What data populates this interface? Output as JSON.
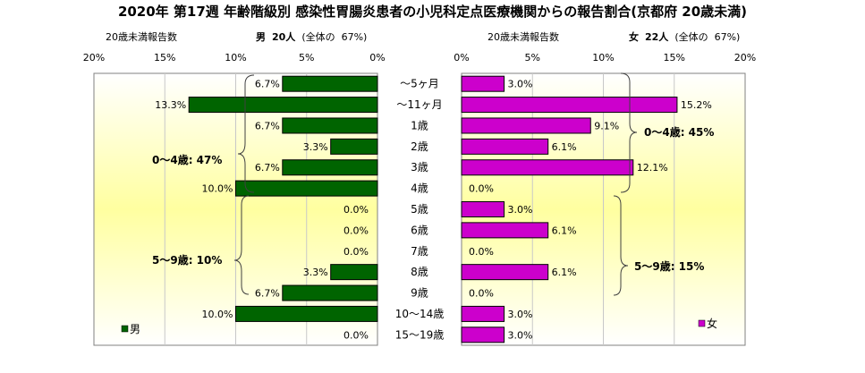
{
  "title": "2020年 第17週 年齢階級別 感染性胃腸炎患者の小児科定点医療機関からの報告割合(京都府 20歳未満)",
  "left_panel": {
    "subtitle_left": "20歳未満報告数",
    "subtitle_sex": "男",
    "subtitle_count": "20人",
    "subtitle_share_label": "(全体の",
    "subtitle_share_value": "67%)",
    "legend": "男",
    "group_labels": [
      "0～4歳: 47%",
      "5～9歳: 10%"
    ]
  },
  "right_panel": {
    "subtitle_left": "20歳未満報告数",
    "subtitle_sex": "女",
    "subtitle_count": "22人",
    "subtitle_share_label": "(全体の",
    "subtitle_share_value": "67%)",
    "legend": "女",
    "group_labels": [
      "0～4歳: 45%",
      "5～9歳: 15%"
    ]
  },
  "colors": {
    "male": "#006400",
    "female": "#cc00cc",
    "plot_top": "#ffffff",
    "plot_mid": "#ffffa0"
  },
  "chart_data": {
    "type": "bar",
    "orientation": "horizontal",
    "categories": [
      "～5ヶ月",
      "～11ヶ月",
      "1歳",
      "2歳",
      "3歳",
      "4歳",
      "5歳",
      "6歳",
      "7歳",
      "8歳",
      "9歳",
      "10～14歳",
      "15～19歳"
    ],
    "xlim": [
      0,
      20
    ],
    "x_ticks": [
      "20%",
      "15%",
      "10%",
      "5%",
      "0%"
    ],
    "x_ticks_right": [
      "0%",
      "5%",
      "10%",
      "15%",
      "20%"
    ],
    "series": [
      {
        "name": "男",
        "values": [
          6.7,
          13.3,
          6.7,
          3.3,
          6.7,
          10.0,
          0.0,
          0.0,
          0.0,
          3.3,
          6.7,
          10.0,
          0.0
        ],
        "labels": [
          "6.7%",
          "13.3%",
          "6.7%",
          "3.3%",
          "6.7%",
          "10.0%",
          "0.0%",
          "0.0%",
          "0.0%",
          "3.3%",
          "6.7%",
          "10.0%",
          "0.0%"
        ]
      },
      {
        "name": "女",
        "values": [
          3.0,
          15.2,
          9.1,
          6.1,
          12.1,
          0.0,
          3.0,
          6.1,
          0.0,
          6.1,
          0.0,
          3.0,
          3.0
        ],
        "labels": [
          "3.0%",
          "15.2%",
          "9.1%",
          "6.1%",
          "12.1%",
          "0.0%",
          "3.0%",
          "6.1%",
          "0.0%",
          "6.1%",
          "0.0%",
          "3.0%",
          "3.0%"
        ]
      }
    ]
  }
}
